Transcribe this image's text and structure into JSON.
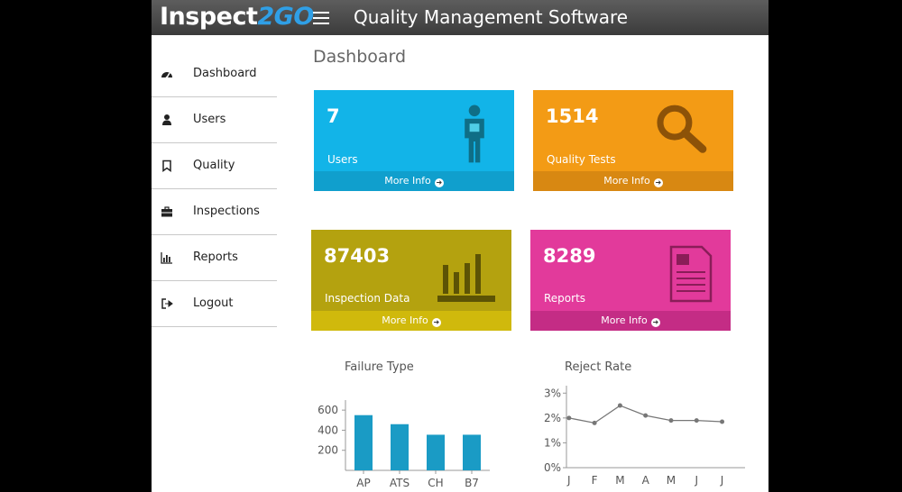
{
  "header": {
    "logo_part1": "Inspect",
    "logo_part2": "2GO",
    "title": "Quality Management Software"
  },
  "sidebar": {
    "items": [
      {
        "label": "Dashboard",
        "icon": "dashboard-icon"
      },
      {
        "label": "Users",
        "icon": "user-icon"
      },
      {
        "label": "Quality",
        "icon": "bookmark-icon"
      },
      {
        "label": "Inspections",
        "icon": "briefcase-icon"
      },
      {
        "label": "Reports",
        "icon": "bar-chart-icon"
      },
      {
        "label": "Logout",
        "icon": "logout-icon"
      }
    ]
  },
  "main": {
    "title": "Dashboard",
    "cards": [
      {
        "value": "7",
        "label": "Users",
        "more": "More Info",
        "color": "#12b4e8",
        "footer_color": "#109fcd",
        "icon": "person-icon"
      },
      {
        "value": "1514",
        "label": "Quality Tests",
        "more": "More Info",
        "color": "#f39b15",
        "footer_color": "#d88812",
        "icon": "magnifier-icon"
      },
      {
        "value": "87403",
        "label": "Inspection Data",
        "more": "More Info",
        "color": "#b4a20f",
        "footer_color": "#d0b90c",
        "icon": "bar-chart-icon"
      },
      {
        "value": "8289",
        "label": "Reports",
        "more": "More Info",
        "color": "#e23a9b",
        "footer_color": "#c42c85",
        "icon": "document-icon"
      }
    ]
  },
  "chart_data": [
    {
      "type": "bar",
      "title": "Failure Type",
      "categories": [
        "AP",
        "ATS",
        "CH",
        "B7"
      ],
      "values": [
        550,
        460,
        355,
        355
      ],
      "yticks": [
        "200",
        "400",
        "600"
      ],
      "ylim": [
        0,
        700
      ],
      "color": "#1a9bc5",
      "grid": false
    },
    {
      "type": "line",
      "title": "Reject Rate",
      "categories": [
        "J",
        "F",
        "M",
        "A",
        "M",
        "J",
        "J"
      ],
      "values": [
        2.0,
        1.8,
        2.5,
        2.1,
        1.9,
        1.9,
        1.85
      ],
      "yticks": [
        "0%",
        "1%",
        "2%",
        "3%"
      ],
      "ylim": [
        0,
        3.3
      ],
      "color": "#777777",
      "grid": false
    }
  ]
}
